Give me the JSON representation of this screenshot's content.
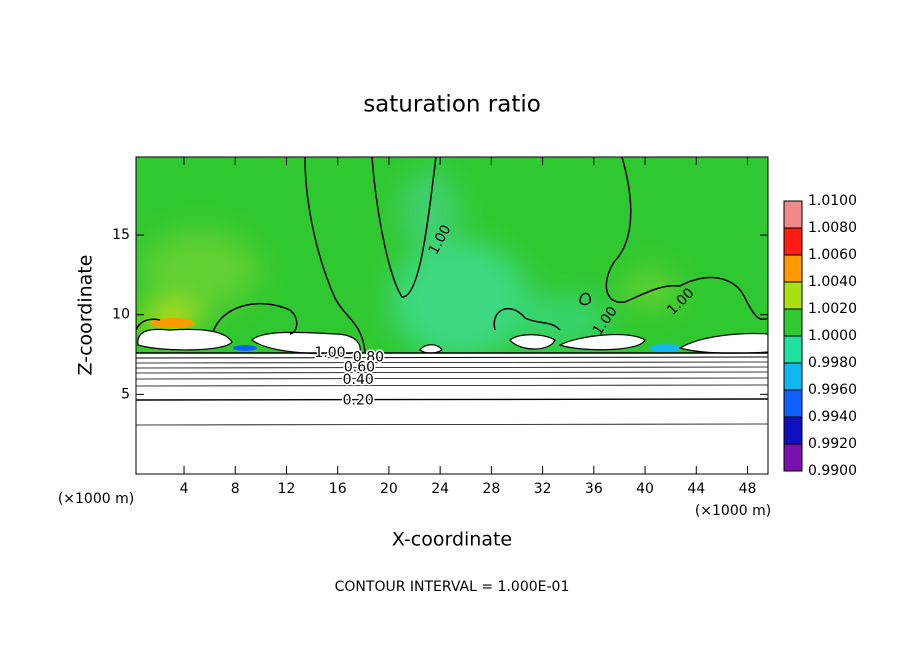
{
  "chart_data": {
    "type": "contour",
    "title": "saturation ratio",
    "x_label": "X-coordinate",
    "y_label": "Z-coordinate",
    "x_unit": "(×1000 m)",
    "y_unit": "(×1000 m)",
    "footer": "CONTOUR INTERVAL = 1.000E-01",
    "xlim": [
      0.25,
      49.6
    ],
    "ylim": [
      0,
      19.9
    ],
    "xticks": [
      4,
      8,
      12,
      16,
      20,
      24,
      28,
      32,
      36,
      40,
      44,
      48
    ],
    "yticks": [
      5,
      10,
      15
    ],
    "contour_labels": [
      {
        "text": "1.00",
        "x": 24.0,
        "y": 14.7
      },
      {
        "text": "1.00",
        "x": 15.4,
        "y": 7.6
      },
      {
        "text": "0.80",
        "x": 18.4,
        "y": 7.3
      },
      {
        "text": "0.60",
        "x": 17.7,
        "y": 6.7
      },
      {
        "text": "0.40",
        "x": 17.6,
        "y": 5.9
      },
      {
        "text": "0.20",
        "x": 17.6,
        "y": 4.6
      },
      {
        "text": "1.00",
        "x": 36.9,
        "y": 9.6
      },
      {
        "text": "1.00",
        "x": 42.8,
        "y": 10.8
      }
    ],
    "colorbar": {
      "lim": [
        0.99,
        1.01
      ],
      "ticks": [
        {
          "value": 0.99,
          "label": "0.9900"
        },
        {
          "value": 0.992,
          "label": "0.9920"
        },
        {
          "value": 0.994,
          "label": "0.9940"
        },
        {
          "value": 0.996,
          "label": "0.9960"
        },
        {
          "value": 0.998,
          "label": "0.9980"
        },
        {
          "value": 1.0,
          "label": "1.0000"
        },
        {
          "value": 1.002,
          "label": "1.0020"
        },
        {
          "value": 1.004,
          "label": "1.0040"
        },
        {
          "value": 1.006,
          "label": "1.0060"
        },
        {
          "value": 1.008,
          "label": "1.0080"
        },
        {
          "value": 1.01,
          "label": "1.0100"
        }
      ],
      "colors": [
        "#7a10b0",
        "#1010c0",
        "#1060ff",
        "#10b8f0",
        "#20e0a0",
        "#30c830",
        "#a8e010",
        "#ff9a00",
        "#ff1c10",
        "#f08a8a"
      ]
    }
  }
}
